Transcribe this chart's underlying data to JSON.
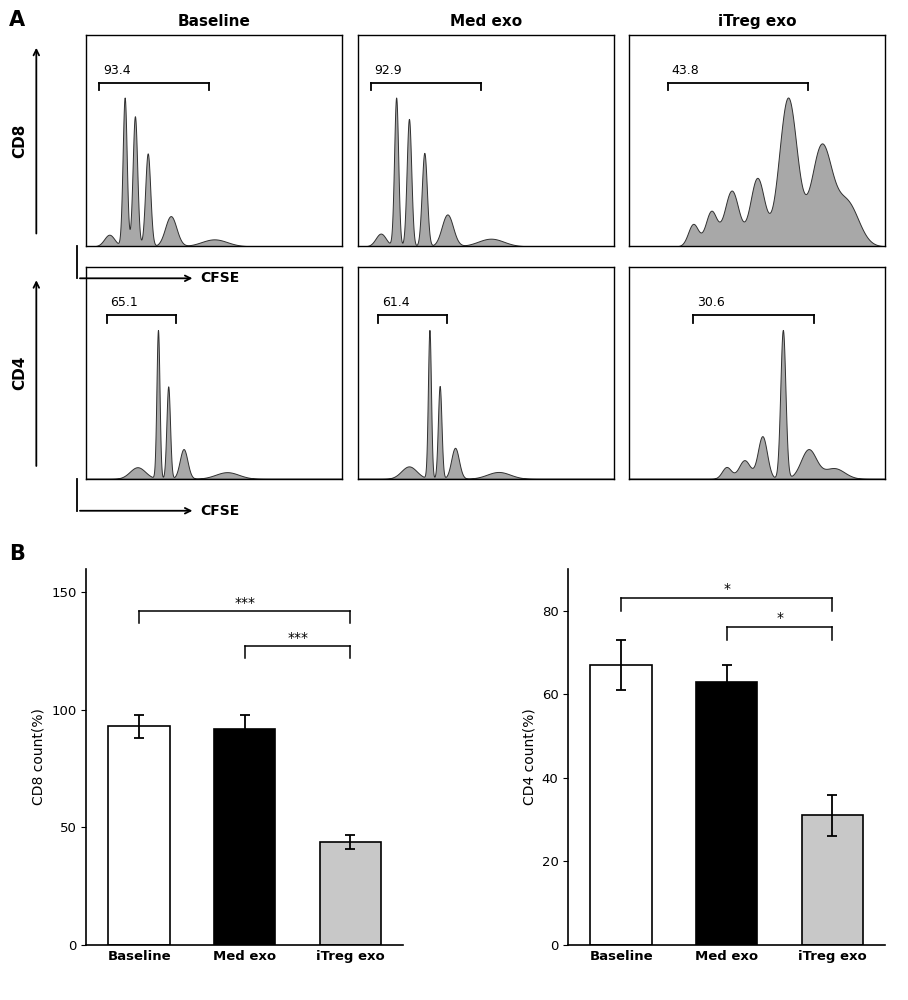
{
  "col_labels": [
    "Baseline",
    "Med exo",
    "iTreg exo"
  ],
  "cd8_percentages": [
    "93.4",
    "92.9",
    "43.8"
  ],
  "cd4_percentages": [
    "65.1",
    "61.4",
    "30.6"
  ],
  "bar_cd8_values": [
    93,
    92,
    44
  ],
  "bar_cd8_errors": [
    5,
    6,
    3
  ],
  "bar_cd4_values": [
    67,
    63,
    31
  ],
  "bar_cd4_errors": [
    6,
    4,
    5
  ],
  "bar_colors": [
    "white",
    "black",
    "#c8c8c8"
  ],
  "bar_edgecolor": "black",
  "cd8_ylabel": "CD8 count(%)",
  "cd4_ylabel": "CD4 count(%)",
  "cd8_yticks": [
    0,
    50,
    100,
    150
  ],
  "cd4_yticks": [
    0,
    20,
    40,
    60,
    80
  ],
  "bar_categories": [
    "Baseline",
    "Med exo",
    "iTreg exo"
  ],
  "hist_fill_color": "#a8a8a8",
  "hist_edge_color": "#303030",
  "panel_A_label": "A",
  "panel_B_label": "B",
  "cd8_row_label": "CD8",
  "cd4_row_label": "CD4",
  "cfse_label": "CFSE"
}
